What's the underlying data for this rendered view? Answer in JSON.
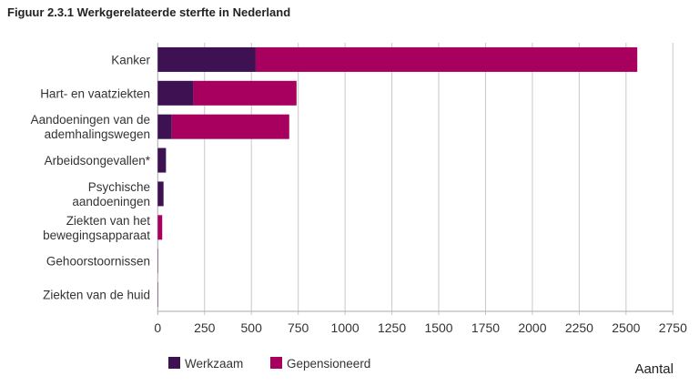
{
  "chart_data": {
    "type": "bar",
    "orientation": "horizontal",
    "stacked": true,
    "title": "Figuur 2.3.1 Werkgerelateerde sterfte in Nederland",
    "xlabel": "Aantal",
    "ylabel": "",
    "xlim": [
      0,
      2750
    ],
    "xticks": [
      0,
      250,
      500,
      750,
      1000,
      1250,
      1500,
      1750,
      2000,
      2250,
      2500,
      2750
    ],
    "grid": true,
    "legend_position": "bottom-left",
    "categories": [
      [
        "Kanker"
      ],
      [
        "Hart- en vaatziekten"
      ],
      [
        "Aandoeningen van de",
        "ademhalingswegen"
      ],
      [
        "Arbeidsongevallen*"
      ],
      [
        "Psychische",
        "aandoeningen"
      ],
      [
        "Ziekten van het",
        "bewegingsapparaat"
      ],
      [
        "Gehoorstoornissen"
      ],
      [
        "Ziekten van de huid"
      ]
    ],
    "series": [
      {
        "name": "Werkzaam",
        "color": "#3d1152",
        "values": [
          523,
          190,
          75,
          44,
          31,
          0,
          1,
          1
        ]
      },
      {
        "name": "Gepensioneerd",
        "color": "#a8005f",
        "values": [
          2037,
          551,
          627,
          0,
          0,
          24,
          1,
          1
        ]
      }
    ]
  }
}
